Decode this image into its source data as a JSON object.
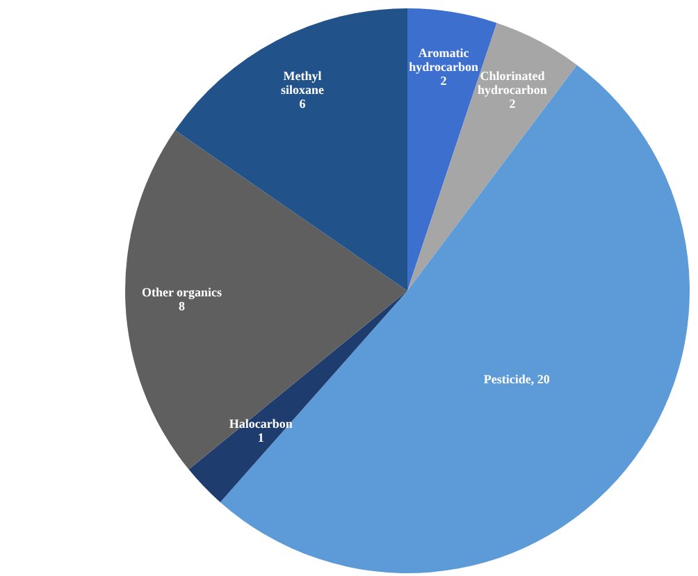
{
  "chart_data": {
    "type": "pie",
    "categories": [
      "Aromatic hydrocarbon",
      "Chlorinated hydrocarbon",
      "Pesticide",
      "Halocarbon",
      "Other organics",
      "Methyl siloxane"
    ],
    "values": [
      2,
      2,
      20,
      1,
      8,
      6
    ],
    "colors": [
      "#3d6fcf",
      "#a6a6a6",
      "#5d9bd8",
      "#1f3c6e",
      "#5f5f5f",
      "#22528a"
    ],
    "value_labels": [
      "2",
      "2",
      ", 20",
      "1",
      "8",
      "6"
    ],
    "legend": false
  }
}
